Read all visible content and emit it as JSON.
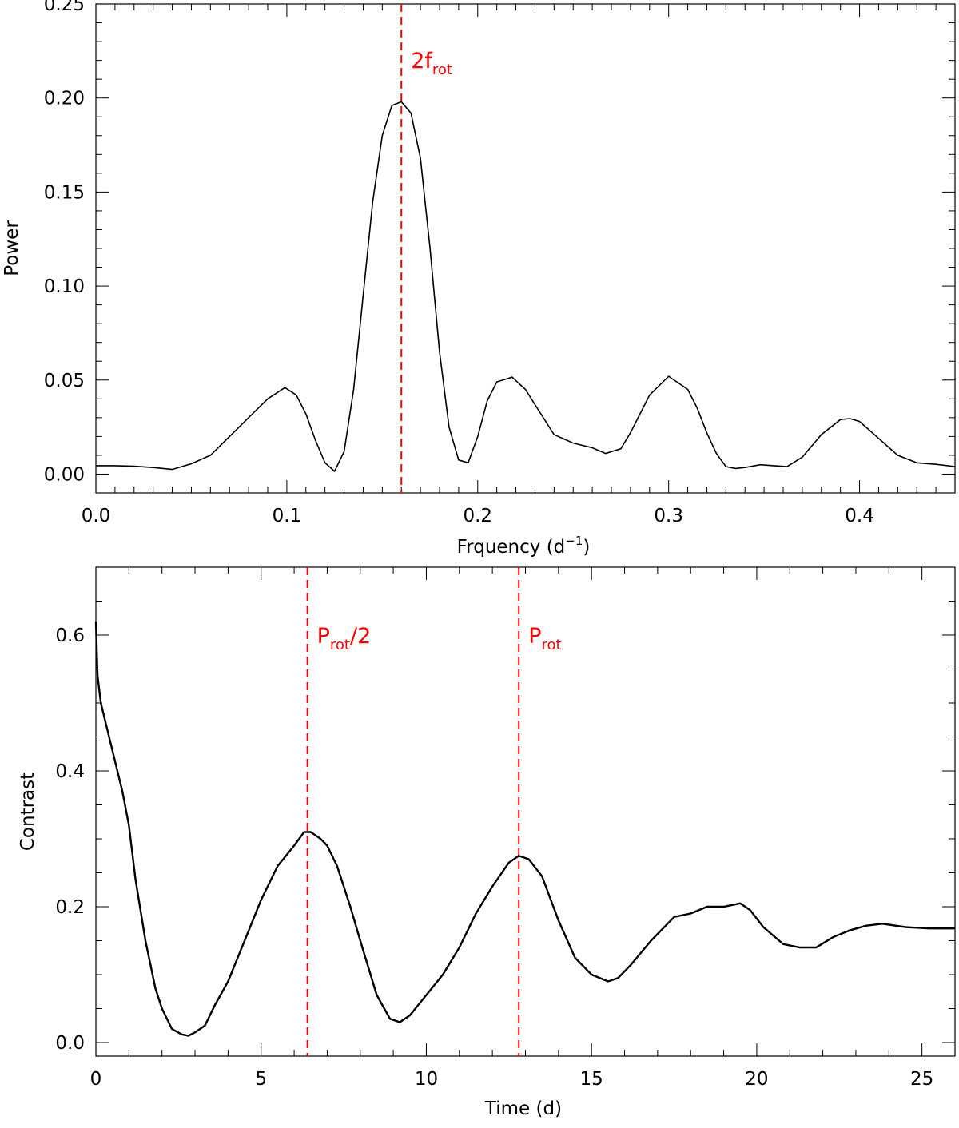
{
  "chart_data": [
    {
      "type": "line",
      "xlabel": "Frquency (d",
      "xlabel_sup": "−1",
      "xlabel_tail": ")",
      "ylabel": "Power",
      "xlim": [
        0.0,
        0.45
      ],
      "ylim": [
        -0.01,
        0.25
      ],
      "x_ticks": [
        0.0,
        0.1,
        0.2,
        0.3,
        0.4
      ],
      "x_tick_labels": [
        "0.0",
        "0.1",
        "0.2",
        "0.3",
        "0.4"
      ],
      "x_minor_step": 0.01,
      "y_ticks": [
        0.0,
        0.05,
        0.1,
        0.15,
        0.2,
        0.25
      ],
      "y_tick_labels": [
        "0.00",
        "0.05",
        "0.10",
        "0.15",
        "0.20",
        "0.25"
      ],
      "y_minor_step": 0.01,
      "grid": false,
      "line_color": "#000000",
      "marker_color": "#ff0000",
      "series": [
        {
          "x": [
            0.0,
            0.01,
            0.02,
            0.03,
            0.04,
            0.05,
            0.06,
            0.07,
            0.08,
            0.09,
            0.099,
            0.105,
            0.11,
            0.115,
            0.12,
            0.125,
            0.13,
            0.135,
            0.14,
            0.145,
            0.15,
            0.155,
            0.16,
            0.165,
            0.17,
            0.175,
            0.18,
            0.185,
            0.19,
            0.195,
            0.2,
            0.205,
            0.21,
            0.218,
            0.225,
            0.23,
            0.24,
            0.25,
            0.26,
            0.267,
            0.275,
            0.28,
            0.29,
            0.3,
            0.31,
            0.315,
            0.32,
            0.325,
            0.33,
            0.335,
            0.34,
            0.348,
            0.355,
            0.362,
            0.37,
            0.38,
            0.39,
            0.395,
            0.4,
            0.41,
            0.42,
            0.43,
            0.44,
            0.45
          ],
          "y": [
            0.0045,
            0.0045,
            0.0042,
            0.0035,
            0.0025,
            0.0055,
            0.01,
            0.02,
            0.03,
            0.04,
            0.046,
            0.042,
            0.032,
            0.018,
            0.006,
            0.0015,
            0.012,
            0.045,
            0.095,
            0.145,
            0.18,
            0.196,
            0.198,
            0.192,
            0.168,
            0.12,
            0.065,
            0.025,
            0.0075,
            0.006,
            0.02,
            0.039,
            0.049,
            0.0515,
            0.045,
            0.037,
            0.021,
            0.0165,
            0.014,
            0.011,
            0.0135,
            0.022,
            0.042,
            0.052,
            0.045,
            0.035,
            0.022,
            0.011,
            0.004,
            0.003,
            0.0035,
            0.005,
            0.0045,
            0.004,
            0.009,
            0.021,
            0.029,
            0.0295,
            0.028,
            0.019,
            0.01,
            0.006,
            0.0052,
            0.004
          ]
        }
      ],
      "markers": [
        {
          "x": 0.16,
          "label": "2f",
          "label_sub": "rot"
        }
      ]
    },
    {
      "type": "line",
      "xlabel": "Time (d)",
      "ylabel": "Contrast",
      "xlim": [
        0,
        26
      ],
      "ylim": [
        -0.02,
        0.7
      ],
      "x_ticks": [
        0,
        5,
        10,
        15,
        20,
        25
      ],
      "x_tick_labels": [
        "0",
        "5",
        "10",
        "15",
        "20",
        "25"
      ],
      "x_minor_step": 1,
      "y_ticks": [
        0.0,
        0.2,
        0.4,
        0.6
      ],
      "y_tick_labels": [
        "0.0",
        "0.2",
        "0.4",
        "0.6"
      ],
      "y_minor_step": 0.05,
      "grid": false,
      "line_color": "#000000",
      "marker_color": "#ff0000",
      "series": [
        {
          "x": [
            0,
            0.05,
            0.15,
            0.3,
            0.5,
            0.8,
            1.0,
            1.2,
            1.5,
            1.8,
            2.0,
            2.3,
            2.6,
            2.8,
            3.0,
            3.3,
            3.6,
            4.0,
            4.5,
            5.0,
            5.5,
            6.0,
            6.3,
            6.5,
            6.8,
            7.0,
            7.3,
            7.7,
            8.0,
            8.5,
            8.9,
            9.2,
            9.5,
            10.0,
            10.5,
            11.0,
            11.5,
            12.0,
            12.5,
            12.8,
            13.1,
            13.5,
            14.0,
            14.5,
            15.0,
            15.5,
            15.8,
            16.2,
            16.8,
            17.5,
            18.0,
            18.5,
            19.0,
            19.5,
            19.8,
            20.2,
            20.8,
            21.3,
            21.8,
            22.3,
            22.8,
            23.3,
            23.8,
            24.5,
            25.2,
            26.0
          ],
          "y": [
            0.62,
            0.54,
            0.5,
            0.47,
            0.43,
            0.37,
            0.32,
            0.24,
            0.15,
            0.08,
            0.05,
            0.02,
            0.012,
            0.01,
            0.015,
            0.025,
            0.055,
            0.09,
            0.15,
            0.21,
            0.26,
            0.29,
            0.31,
            0.31,
            0.3,
            0.29,
            0.26,
            0.2,
            0.15,
            0.07,
            0.035,
            0.03,
            0.04,
            0.07,
            0.1,
            0.14,
            0.19,
            0.23,
            0.265,
            0.275,
            0.27,
            0.245,
            0.18,
            0.125,
            0.1,
            0.09,
            0.095,
            0.115,
            0.15,
            0.185,
            0.19,
            0.2,
            0.2,
            0.205,
            0.195,
            0.17,
            0.145,
            0.14,
            0.14,
            0.155,
            0.165,
            0.172,
            0.175,
            0.17,
            0.168,
            0.168
          ]
        }
      ],
      "markers": [
        {
          "x": 6.4,
          "label": "P",
          "label_sub": "rot",
          "label_tail": "/2"
        },
        {
          "x": 12.8,
          "label": "P",
          "label_sub": "rot",
          "label_tail": ""
        }
      ]
    }
  ]
}
